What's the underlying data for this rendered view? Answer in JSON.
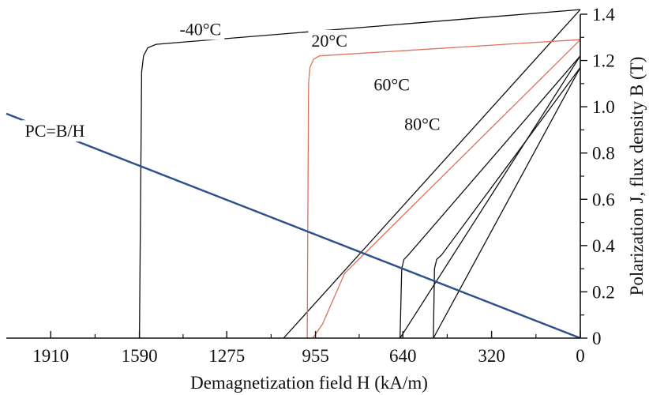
{
  "chart_data": {
    "type": "line",
    "title": "",
    "xlabel": "Demagnetization field H (kA/m)",
    "ylabel": "Polarization J, flux density B (T)",
    "xlim": [
      2070,
      0
    ],
    "ylim": [
      0,
      1.4
    ],
    "x_ticks": [
      1910,
      1590,
      1275,
      955,
      640,
      320,
      0
    ],
    "x_tick_labels": [
      "1910",
      "1590",
      "1275",
      "955",
      "640",
      "320",
      "0"
    ],
    "y_ticks": [
      0,
      0.2,
      0.4,
      0.6,
      0.8,
      1.0,
      1.2,
      1.4
    ],
    "y_tick_labels": [
      "0",
      "0.2",
      "0.4",
      "0.6",
      "0.8",
      "1.0",
      "1.2",
      "1.4"
    ],
    "grid": false,
    "colors": {
      "highlight": "#d9735e",
      "load_line": "#2e4f8e",
      "default": "#111111"
    },
    "series": [
      {
        "name": "-40°C",
        "color": "#111111",
        "J": [
          [
            1590,
            0
          ],
          [
            1582,
            1.15
          ],
          [
            1575,
            1.22
          ],
          [
            1560,
            1.255
          ],
          [
            1530,
            1.27
          ],
          [
            0,
            1.42
          ]
        ],
        "B": [
          [
            1070,
            0
          ],
          [
            0,
            1.42
          ]
        ]
      },
      {
        "name": "20°C",
        "color": "#d9735e",
        "J": [
          [
            985,
            0
          ],
          [
            980,
            1.1
          ],
          [
            975,
            1.17
          ],
          [
            962,
            1.205
          ],
          [
            940,
            1.22
          ],
          [
            0,
            1.29
          ]
        ],
        "B": [
          [
            965,
            0
          ],
          [
            930,
            0.06
          ],
          [
            850,
            0.28
          ],
          [
            0,
            1.29
          ]
        ]
      },
      {
        "name": "60°C",
        "color": "#111111",
        "J": [
          [
            650,
            0
          ],
          [
            644,
            0.3
          ],
          [
            636,
            0.34
          ],
          [
            620,
            0.36
          ],
          [
            0,
            1.22
          ]
        ],
        "B": [
          [
            650,
            0
          ],
          [
            0,
            1.22
          ]
        ]
      },
      {
        "name": "80°C",
        "color": "#111111",
        "J": [
          [
            530,
            0
          ],
          [
            526,
            0.3
          ],
          [
            518,
            0.34
          ],
          [
            500,
            0.36
          ],
          [
            0,
            1.17
          ]
        ],
        "B": [
          [
            530,
            0
          ],
          [
            0,
            1.17
          ]
        ]
      },
      {
        "name": "PC=B/H",
        "color": "#2e4f8e",
        "points": [
          [
            2070,
            0.97
          ],
          [
            0,
            0
          ]
        ]
      }
    ],
    "annotations": [
      {
        "text": "-40°C",
        "x": 1370,
        "y": 1.31
      },
      {
        "text": "20°C",
        "x": 905,
        "y": 1.26
      },
      {
        "text": "60°C",
        "x": 680,
        "y": 1.07
      },
      {
        "text": "80°C",
        "x": 570,
        "y": 0.9
      },
      {
        "text": "PC=B/H",
        "x": 1895,
        "y": 0.87
      }
    ]
  }
}
